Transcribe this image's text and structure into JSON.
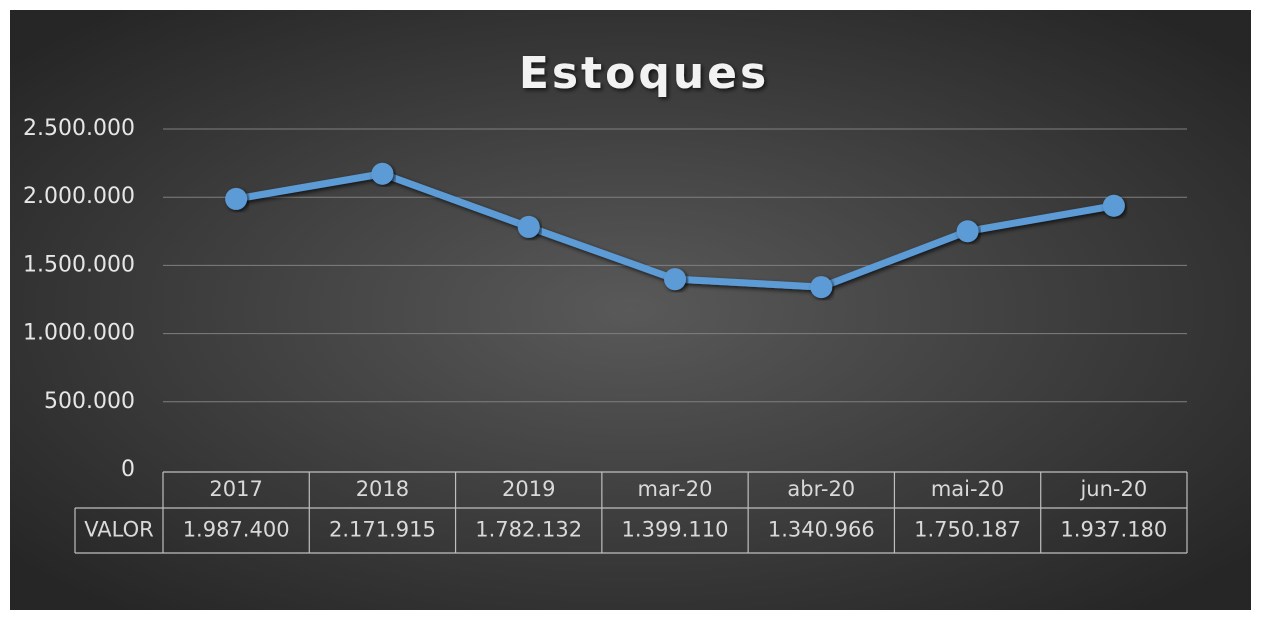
{
  "chart_data": {
    "type": "line",
    "title": "Estoques",
    "categories": [
      "2017",
      "2018",
      "2019",
      "mar-20",
      "abr-20",
      "mai-20",
      "jun-20"
    ],
    "series": [
      {
        "name": "VALOR",
        "color": "#5b9bd5",
        "values": [
          1987400,
          2171915,
          1782132,
          1399110,
          1340966,
          1750187,
          1937180
        ],
        "value_labels": [
          "1.987.400",
          "2.171.915",
          "1.782.132",
          "1.399.110",
          "1.340.966",
          "1.750.187",
          "1.937.180"
        ]
      }
    ],
    "ylim": [
      0,
      2500000
    ],
    "yticks": [
      0,
      {
        "value": 500000,
        "label": "500.000"
      },
      {
        "value": 1000000,
        "label": "1.000.000"
      },
      {
        "value": 1500000,
        "label": "1.500.000"
      },
      {
        "value": 2000000,
        "label": "2.000.000"
      },
      {
        "value": 2500000,
        "label": "2.500.000"
      }
    ],
    "grid": true,
    "data_table": true
  }
}
